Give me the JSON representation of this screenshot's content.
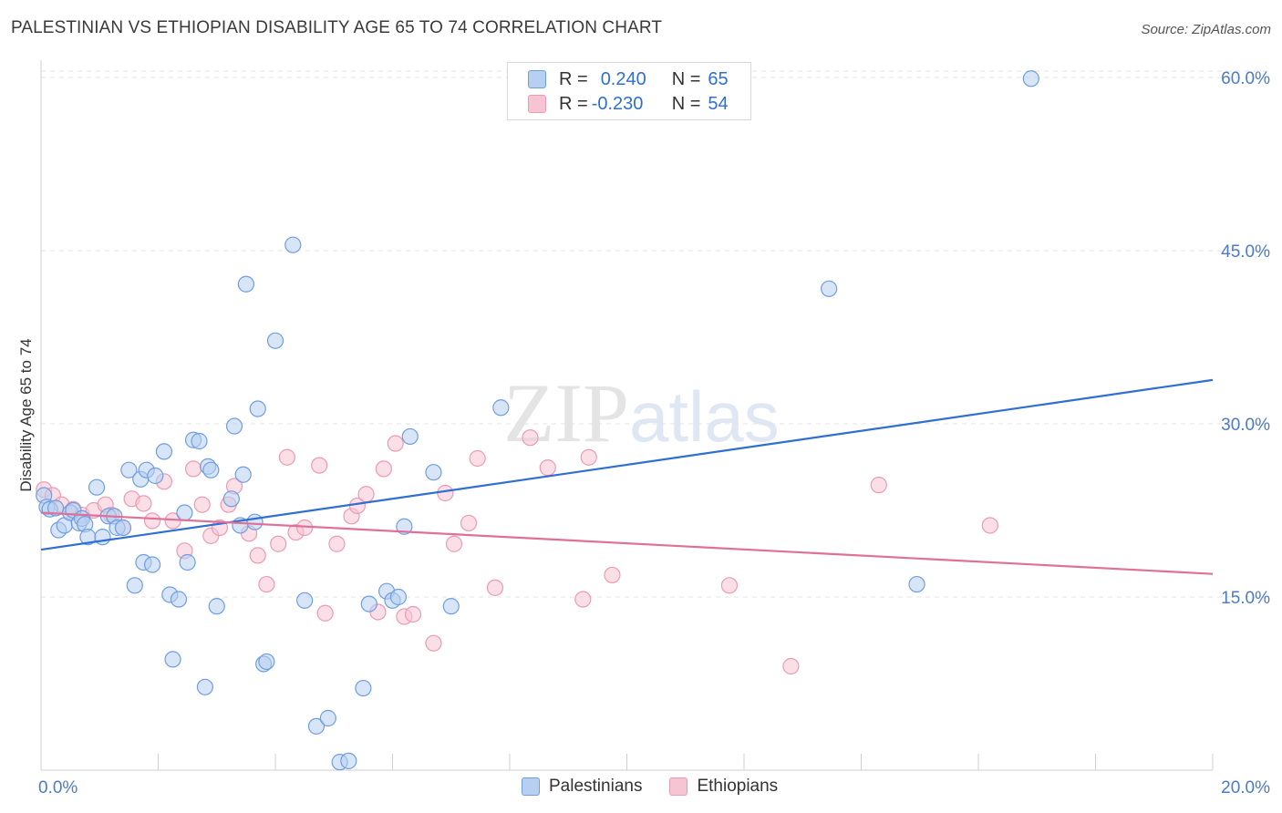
{
  "title": "PALESTINIAN VS ETHIOPIAN DISABILITY AGE 65 TO 74 CORRELATION CHART",
  "source": "Source: ZipAtlas.com",
  "watermark": {
    "zip": "ZIP",
    "atlas": "atlas"
  },
  "legend": {
    "rows": [
      {
        "r_label": "R = ",
        "r_value": "0.240",
        "n_label": "N = ",
        "n_value": "65"
      },
      {
        "r_label": "R = ",
        "r_value": "-0.230",
        "n_label": "N = ",
        "n_value": "54"
      }
    ]
  },
  "bottom_legend": {
    "series_a": "Palestinians",
    "series_b": "Ethiopians"
  },
  "colors": {
    "blue_fill": "#b7cff1",
    "blue_stroke": "#6f9ee0",
    "blue_line": "#2f6fd1",
    "pink_fill": "#f7c4d3",
    "pink_stroke": "#ec9ab4",
    "pink_line": "#e07099",
    "grid": "#e3e3e3",
    "axis_text": "#4a7cc7"
  },
  "chart_data": {
    "type": "scatter",
    "title": "PALESTINIAN VS ETHIOPIAN DISABILITY AGE 65 TO 74 CORRELATION CHART",
    "xlabel": "",
    "ylabel": "Disability Age 65 to 74",
    "xlim": [
      0,
      20
    ],
    "ylim": [
      0,
      61.5
    ],
    "x_tick_labels": [
      "0.0%",
      "20.0%"
    ],
    "y_ticks": [
      15,
      30,
      45,
      60
    ],
    "y_tick_labels": [
      "15.0%",
      "30.0%",
      "45.0%",
      "60.0%"
    ],
    "legend_position": "top-center",
    "series": [
      {
        "name": "Palestinians",
        "r": 0.24,
        "n": 65,
        "trend": {
          "x": [
            0,
            20
          ],
          "y": [
            19.1,
            33.8
          ]
        },
        "points": [
          [
            0.05,
            23.8
          ],
          [
            0.1,
            22.8
          ],
          [
            0.15,
            22.6
          ],
          [
            0.25,
            22.7
          ],
          [
            0.3,
            20.8
          ],
          [
            0.4,
            21.2
          ],
          [
            0.5,
            22.3
          ],
          [
            0.55,
            22.5
          ],
          [
            0.65,
            21.4
          ],
          [
            0.7,
            21.8
          ],
          [
            0.75,
            21.3
          ],
          [
            0.8,
            20.2
          ],
          [
            0.95,
            24.5
          ],
          [
            1.05,
            20.2
          ],
          [
            1.15,
            22.0
          ],
          [
            1.25,
            22.0
          ],
          [
            1.3,
            21.0
          ],
          [
            1.4,
            21.0
          ],
          [
            1.5,
            26.0
          ],
          [
            1.6,
            16.0
          ],
          [
            1.7,
            25.2
          ],
          [
            1.75,
            18.0
          ],
          [
            1.8,
            26.0
          ],
          [
            1.9,
            17.8
          ],
          [
            1.95,
            25.5
          ],
          [
            2.1,
            27.6
          ],
          [
            2.2,
            15.2
          ],
          [
            2.25,
            9.6
          ],
          [
            2.35,
            14.8
          ],
          [
            2.45,
            22.3
          ],
          [
            2.5,
            18.0
          ],
          [
            2.6,
            28.6
          ],
          [
            2.7,
            28.5
          ],
          [
            2.8,
            7.2
          ],
          [
            2.85,
            26.3
          ],
          [
            2.9,
            26.0
          ],
          [
            3.0,
            14.2
          ],
          [
            3.25,
            23.5
          ],
          [
            3.3,
            29.8
          ],
          [
            3.4,
            21.2
          ],
          [
            3.45,
            25.6
          ],
          [
            3.5,
            42.1
          ],
          [
            3.65,
            21.5
          ],
          [
            3.7,
            31.3
          ],
          [
            3.8,
            9.2
          ],
          [
            3.85,
            9.4
          ],
          [
            4.0,
            37.2
          ],
          [
            4.3,
            45.5
          ],
          [
            4.5,
            14.7
          ],
          [
            4.7,
            3.8
          ],
          [
            4.9,
            4.5
          ],
          [
            5.1,
            0.7
          ],
          [
            5.25,
            0.8
          ],
          [
            5.5,
            7.1
          ],
          [
            5.6,
            14.4
          ],
          [
            5.9,
            15.5
          ],
          [
            6.0,
            14.7
          ],
          [
            6.1,
            15.0
          ],
          [
            6.2,
            21.1
          ],
          [
            6.3,
            28.9
          ],
          [
            6.7,
            25.8
          ],
          [
            7.0,
            14.2
          ],
          [
            7.85,
            31.4
          ],
          [
            13.45,
            41.7
          ],
          [
            14.95,
            16.1
          ],
          [
            16.9,
            59.9
          ]
        ]
      },
      {
        "name": "Ethiopians",
        "r": -0.23,
        "n": 54,
        "trend": {
          "x": [
            0,
            20
          ],
          "y": [
            22.3,
            17.0
          ]
        },
        "points": [
          [
            0.05,
            24.3
          ],
          [
            0.2,
            23.8
          ],
          [
            0.35,
            23.0
          ],
          [
            0.55,
            22.6
          ],
          [
            0.7,
            22.1
          ],
          [
            0.9,
            22.5
          ],
          [
            1.1,
            23.0
          ],
          [
            1.2,
            22.1
          ],
          [
            1.4,
            21.0
          ],
          [
            1.55,
            23.5
          ],
          [
            1.75,
            23.1
          ],
          [
            1.9,
            21.6
          ],
          [
            2.1,
            25.0
          ],
          [
            2.25,
            21.6
          ],
          [
            2.45,
            19.0
          ],
          [
            2.6,
            26.1
          ],
          [
            2.75,
            23.0
          ],
          [
            2.9,
            20.3
          ],
          [
            3.05,
            21.0
          ],
          [
            3.2,
            23.0
          ],
          [
            3.3,
            24.6
          ],
          [
            3.55,
            20.5
          ],
          [
            3.7,
            18.6
          ],
          [
            3.85,
            16.1
          ],
          [
            4.05,
            19.6
          ],
          [
            4.2,
            27.1
          ],
          [
            4.35,
            20.6
          ],
          [
            4.5,
            21.0
          ],
          [
            4.75,
            26.4
          ],
          [
            4.85,
            13.6
          ],
          [
            5.05,
            19.6
          ],
          [
            5.3,
            22.0
          ],
          [
            5.4,
            22.9
          ],
          [
            5.55,
            23.9
          ],
          [
            5.75,
            13.7
          ],
          [
            5.85,
            26.1
          ],
          [
            6.05,
            28.3
          ],
          [
            6.2,
            13.3
          ],
          [
            6.35,
            13.5
          ],
          [
            6.7,
            11.0
          ],
          [
            6.9,
            24.0
          ],
          [
            7.05,
            19.6
          ],
          [
            7.3,
            21.4
          ],
          [
            7.45,
            27.0
          ],
          [
            7.75,
            15.8
          ],
          [
            8.35,
            28.8
          ],
          [
            8.65,
            26.2
          ],
          [
            9.25,
            14.8
          ],
          [
            9.35,
            27.1
          ],
          [
            9.75,
            16.9
          ],
          [
            11.75,
            16.0
          ],
          [
            12.8,
            9.0
          ],
          [
            14.3,
            24.7
          ],
          [
            16.2,
            21.2
          ]
        ]
      }
    ]
  }
}
